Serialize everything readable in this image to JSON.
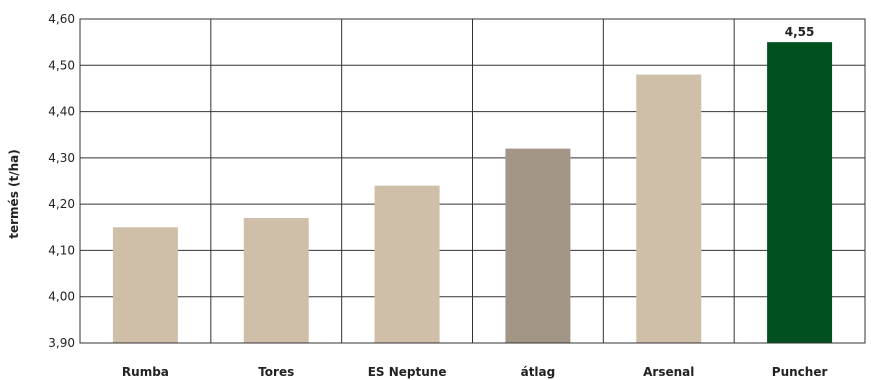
{
  "chart_data": {
    "type": "bar",
    "title": "",
    "xlabel": "",
    "ylabel": "termés (t/ha)",
    "ylim": [
      3.9,
      4.6
    ],
    "yticks": [
      "3,90",
      "4,00",
      "4,10",
      "4,20",
      "4,30",
      "4,40",
      "4,50",
      "4,60"
    ],
    "grid": true,
    "categories": [
      "Rumba",
      "Tores",
      "ES Neptune",
      "átlag",
      "Arsenal",
      "Puncher"
    ],
    "values": [
      4.15,
      4.17,
      4.24,
      4.32,
      4.48,
      4.55
    ],
    "colors": [
      "#cfbfa8",
      "#cfbfa8",
      "#cfbfa8",
      "#a39686",
      "#cfbfa8",
      "#00511f"
    ],
    "data_labels": [
      "",
      "",
      "",
      "",
      "",
      "4,55"
    ]
  }
}
